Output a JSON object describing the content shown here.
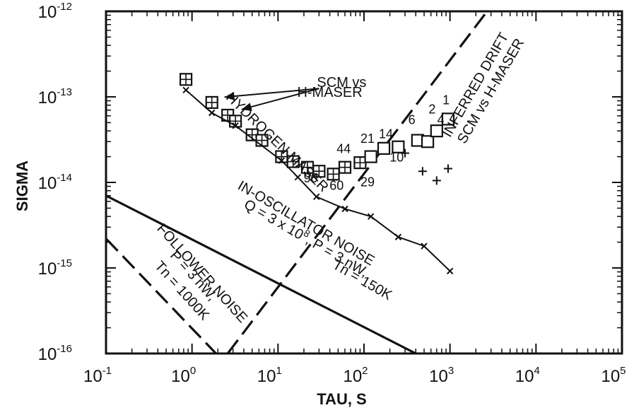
{
  "chart_data": {
    "type": "scatter",
    "xlabel": "TAU, S",
    "ylabel": "SIGMA",
    "xscale": "log",
    "yscale": "log",
    "xlim": [
      0.1,
      100000
    ],
    "ylim": [
      1e-16,
      1e-12
    ],
    "x_ticks": [
      {
        "value": 0.1,
        "base": "10",
        "exp": "-1"
      },
      {
        "value": 1,
        "base": "10",
        "exp": "0"
      },
      {
        "value": 10,
        "base": "10",
        "exp": "1"
      },
      {
        "value": 100,
        "base": "10",
        "exp": "2"
      },
      {
        "value": 1000,
        "base": "10",
        "exp": "3"
      },
      {
        "value": 10000,
        "base": "10",
        "exp": "4"
      },
      {
        "value": 100000,
        "base": "10",
        "exp": "5"
      }
    ],
    "y_ticks": [
      {
        "value": 1e-16,
        "base": "10",
        "exp": "-16"
      },
      {
        "value": 1e-15,
        "base": "10",
        "exp": "-15"
      },
      {
        "value": 1e-14,
        "base": "10",
        "exp": "-14"
      },
      {
        "value": 1e-13,
        "base": "10",
        "exp": "-13"
      },
      {
        "value": 1e-12,
        "base": "10",
        "exp": "-12"
      }
    ],
    "series": [
      {
        "name": "SCM vs H-MASER",
        "marker": "square",
        "points": [
          {
            "x": 0.85,
            "y": 1.6e-13,
            "hatched": true
          },
          {
            "x": 1.7,
            "y": 8.6e-14,
            "hatched": true
          },
          {
            "x": 2.6,
            "y": 6.1e-14,
            "hatched": true
          },
          {
            "x": 3.2,
            "y": 5.2e-14,
            "hatched": true
          },
          {
            "x": 5,
            "y": 3.6e-14,
            "hatched": true
          },
          {
            "x": 6.5,
            "y": 3.1e-14,
            "hatched": true
          },
          {
            "x": 11,
            "y": 2e-14,
            "hatched": true
          },
          {
            "x": 15,
            "y": 1.75e-14,
            "hatched": true
          },
          {
            "x": 22,
            "y": 1.5e-14,
            "hatched": true
          },
          {
            "x": 30,
            "y": 1.35e-14,
            "hatched": true
          },
          {
            "x": 44,
            "y": 1.25e-14,
            "hatched": true
          },
          {
            "x": 60,
            "y": 1.5e-14,
            "hatched": true
          },
          {
            "x": 90,
            "y": 1.7e-14,
            "hatched": true
          },
          {
            "x": 120,
            "y": 2e-14,
            "hatched": false
          },
          {
            "x": 170,
            "y": 2.5e-14,
            "hatched": false
          },
          {
            "x": 250,
            "y": 2.6e-14,
            "hatched": false
          },
          {
            "x": 420,
            "y": 3.1e-14,
            "hatched": false
          },
          {
            "x": 550,
            "y": 3e-14,
            "hatched": false
          },
          {
            "x": 700,
            "y": 4e-14,
            "hatched": false
          },
          {
            "x": 950,
            "y": 5.5e-14,
            "hatched": false
          }
        ],
        "point_labels": [
          {
            "text": "1",
            "x": 900,
            "y": 8.2e-14
          },
          {
            "text": "2",
            "x": 620,
            "y": 6.4e-14
          },
          {
            "text": "4",
            "x": 780,
            "y": 4.8e-14
          },
          {
            "text": "6",
            "x": 360,
            "y": 4.8e-14
          },
          {
            "text": "14",
            "x": 180,
            "y": 3.3e-14
          },
          {
            "text": "21",
            "x": 110,
            "y": 2.9e-14
          },
          {
            "text": "10",
            "x": 240,
            "y": 1.75e-14
          },
          {
            "text": "29",
            "x": 110,
            "y": 9e-15
          },
          {
            "text": "44",
            "x": 58,
            "y": 2.2e-14
          },
          {
            "text": "60",
            "x": 48,
            "y": 8.2e-15
          },
          {
            "text": "90",
            "x": 24,
            "y": 1e-14
          }
        ]
      },
      {
        "name": "HYDROGEN MASER",
        "marker": "x",
        "points": [
          {
            "x": 0.85,
            "y": 1.2e-13
          },
          {
            "x": 1.7,
            "y": 6.5e-14
          },
          {
            "x": 3.2,
            "y": 4.6e-14
          },
          {
            "x": 11,
            "y": 1.8e-14
          },
          {
            "x": 17,
            "y": 1.15e-14
          },
          {
            "x": 28,
            "y": 6.8e-15
          },
          {
            "x": 60,
            "y": 4.9e-15
          },
          {
            "x": 120,
            "y": 4e-15
          },
          {
            "x": 250,
            "y": 2.3e-15
          },
          {
            "x": 500,
            "y": 1.8e-15
          },
          {
            "x": 1000,
            "y": 9.2e-16
          }
        ]
      },
      {
        "name": "SCM",
        "marker": "plus",
        "points": [
          {
            "x": 300,
            "y": 2.2e-14
          },
          {
            "x": 480,
            "y": 1.35e-14
          },
          {
            "x": 700,
            "y": 1.05e-14
          },
          {
            "x": 950,
            "y": 1.45e-14
          }
        ]
      }
    ],
    "lines": [
      {
        "name": "IN-OSCILLATOR NOISE",
        "style": "solid",
        "points": [
          {
            "x": 0.1,
            "y": 7e-15
          },
          {
            "x": 400,
            "y": 1e-16
          }
        ]
      },
      {
        "name": "FOLLOWER NOISE",
        "style": "dashed",
        "points": [
          {
            "x": 0.1,
            "y": 2.2e-15
          },
          {
            "x": 1.9,
            "y": 1e-16
          }
        ]
      },
      {
        "name": "INFERRED DRIFT",
        "style": "dashed",
        "points": [
          {
            "x": 2.6,
            "y": 1e-16
          },
          {
            "x": 2700,
            "y": 1e-12
          }
        ]
      }
    ],
    "annotations": [
      {
        "text": "SCM vs",
        "x": 55,
        "y": 1.3e-13
      },
      {
        "text": "H-MASER",
        "x": 40,
        "y": 1e-13
      },
      {
        "text": "HYDROGEN MASER",
        "x": 9,
        "y": 2.7e-14,
        "angle": 44
      },
      {
        "text": "IN-OSCILLATOR NOISE",
        "x": 20,
        "y": 3e-15,
        "angle": 30
      },
      {
        "text": "Q = 3 x 10 8, P = 3 nW,",
        "x": 20,
        "y": 2e-15,
        "angle": 30
      },
      {
        "text": "Tn = 150K",
        "x": 90,
        "y": 6.5e-16,
        "angle": 30
      },
      {
        "text": "FOLLOWER NOISE",
        "x": 1.2,
        "y": 8e-16,
        "angle": 48
      },
      {
        "text": "P = 3 nW,",
        "x": 0.95,
        "y": 7.5e-16,
        "angle": 48
      },
      {
        "text": "Tn = 1000K",
        "x": 0.7,
        "y": 5e-16,
        "angle": 48
      },
      {
        "text": "INFERRED DRIFT",
        "x": 2200,
        "y": 1.3e-13,
        "angle": -60
      },
      {
        "text": "SCM vs H-MASER",
        "x": 3300,
        "y": 1.1e-13,
        "angle": -60
      }
    ],
    "grid": false,
    "legend": "none"
  }
}
